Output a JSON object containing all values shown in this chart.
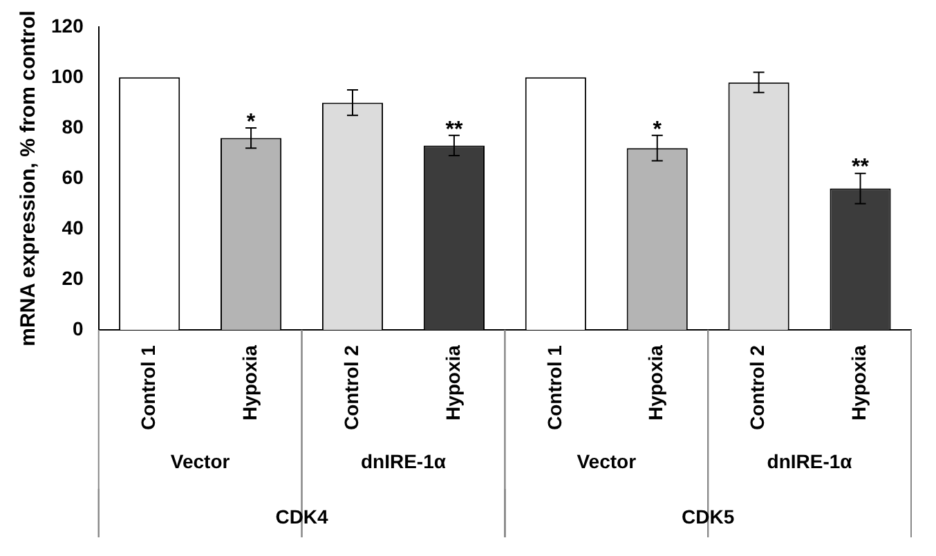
{
  "chart_data": {
    "type": "bar",
    "ylabel": "mRNA expression, % from control",
    "categories": [
      "Control 1",
      "Hypoxia",
      "Control 2",
      "Hypoxia",
      "Control 1",
      "Hypoxia",
      "Control 2",
      "Hypoxia"
    ],
    "values": [
      100,
      76,
      90,
      73,
      100,
      72,
      98,
      56
    ],
    "errors": [
      null,
      4,
      5,
      4,
      null,
      5,
      4,
      6
    ],
    "colors": [
      "#ffffff",
      "#b4b4b4",
      "#dcdcdc",
      "#3c3c3c",
      "#ffffff",
      "#b4b4b4",
      "#dcdcdc",
      "#3c3c3c"
    ],
    "ylim": [
      0,
      120
    ],
    "yticks": [
      0,
      20,
      40,
      60,
      80,
      100,
      120
    ],
    "grid": false,
    "legend": false,
    "annotations": [
      "*",
      "**",
      "*",
      "**",
      "Vector",
      "dnIRE-1α",
      "Vector",
      "dnIRE-1α",
      "CDK4",
      "CDK5"
    ]
  }
}
